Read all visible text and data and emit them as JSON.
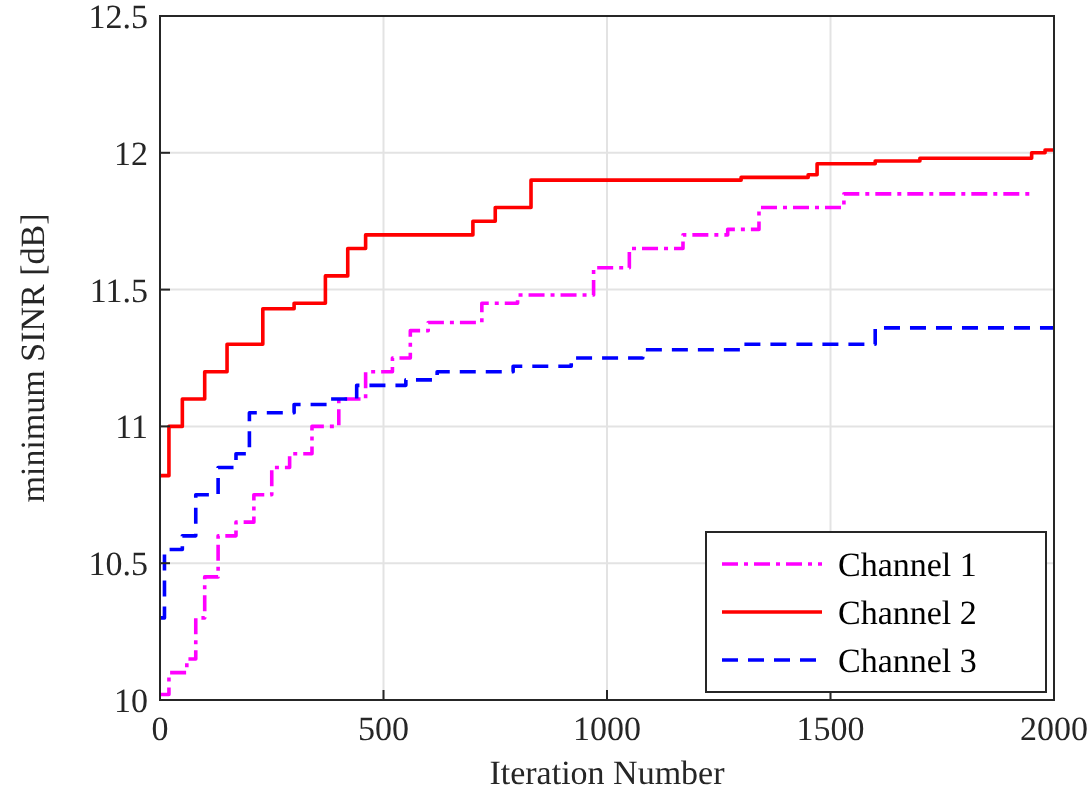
{
  "chart_data": {
    "type": "step",
    "xlabel": "Iteration Number",
    "ylabel": "minimum SINR [dB]",
    "xlim": [
      0,
      2000
    ],
    "xticks": [
      0,
      500,
      1000,
      1500,
      2000
    ],
    "ylim": [
      10,
      12.5
    ],
    "yticks": [
      10,
      10.5,
      11,
      11.5,
      12,
      12.5
    ],
    "grid": true,
    "legend": "bottom right",
    "series": [
      {
        "name": "Channel 1",
        "color": "#ff00ff",
        "line_style": "dashdot",
        "x": [
          0,
          20,
          60,
          80,
          100,
          130,
          170,
          210,
          250,
          290,
          340,
          400,
          460,
          520,
          560,
          600,
          720,
          800,
          970,
          1050,
          1170,
          1270,
          1340,
          1530,
          1950
        ],
        "values": [
          10.02,
          10.1,
          10.15,
          10.3,
          10.45,
          10.6,
          10.65,
          10.75,
          10.85,
          10.9,
          11.0,
          11.1,
          11.2,
          11.25,
          11.35,
          11.38,
          11.45,
          11.48,
          11.58,
          11.65,
          11.7,
          11.72,
          11.8,
          11.85,
          11.85
        ]
      },
      {
        "name": "Channel 2",
        "color": "#ff0000",
        "line_style": "solid",
        "x": [
          0,
          20,
          50,
          100,
          150,
          230,
          300,
          370,
          420,
          460,
          700,
          750,
          830,
          1300,
          1450,
          1470,
          1600,
          1700,
          1950,
          1980,
          2000
        ],
        "values": [
          10.82,
          11.0,
          11.1,
          11.2,
          11.3,
          11.43,
          11.45,
          11.55,
          11.65,
          11.7,
          11.75,
          11.8,
          11.9,
          11.91,
          11.92,
          11.96,
          11.97,
          11.98,
          12.0,
          12.01,
          12.01
        ]
      },
      {
        "name": "Channel 3",
        "color": "#0000ff",
        "line_style": "dashed",
        "x": [
          0,
          10,
          50,
          80,
          130,
          170,
          200,
          300,
          380,
          440,
          550,
          620,
          790,
          920,
          1080,
          1300,
          1600,
          2000
        ],
        "values": [
          10.3,
          10.55,
          10.6,
          10.75,
          10.85,
          10.9,
          11.05,
          11.08,
          11.1,
          11.15,
          11.17,
          11.2,
          11.22,
          11.25,
          11.28,
          11.3,
          11.36,
          11.36
        ]
      }
    ]
  }
}
